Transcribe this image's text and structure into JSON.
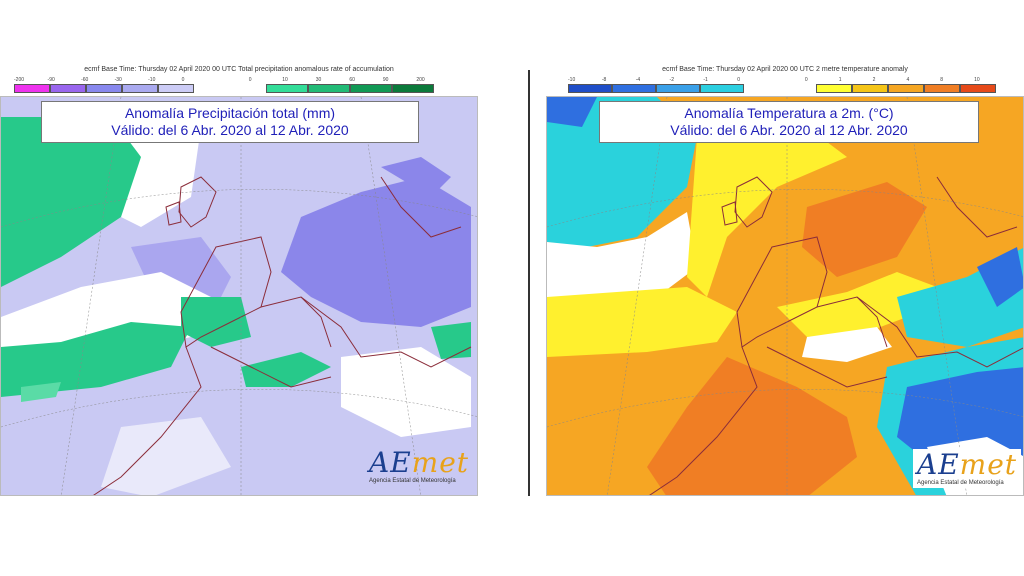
{
  "left_map": {
    "header": "ecmf Base Time: Thursday 02 April 2020 00 UTC Total precipitation anomalous rate of accumulation",
    "scale_ticks": [
      "-200",
      "-90",
      "-60",
      "-30",
      "-10",
      "0",
      "",
      "0",
      "10",
      "30",
      "60",
      "90",
      "200"
    ],
    "scale_colors_negative": [
      "#ee33ee",
      "#9966ee",
      "#8888ee",
      "#aaaaf0",
      "#ccccf6"
    ],
    "scale_colors_positive": [
      "#33dd99",
      "#22bb77",
      "#119955",
      "#0b7a3b"
    ],
    "title_line1": "Anomalía Precipitación total (mm)",
    "title_line2": "Válido: del 6 Abr. 2020 al 12 Abr. 2020",
    "logo_text_a": "AE",
    "logo_text_b": "met",
    "logo_sub": "Agencia Estatal de Meteorología",
    "colors": {
      "background": "#c9c9f3",
      "dry": "#8b86ea",
      "wet": "#27c98a",
      "white": "#ffffff",
      "border_lines": "#8b2d3a"
    }
  },
  "right_map": {
    "header": "ecmf Base Time: Thursday 02 April 2020 00 UTC 2 metre temperature anomaly",
    "scale_ticks": [
      "-10",
      "-8",
      "-4",
      "-2",
      "-1",
      "0",
      "",
      "0",
      "1",
      "2",
      "4",
      "8",
      "10"
    ],
    "scale_colors_negative": [
      "#1f4ec8",
      "#2f6fe0",
      "#3aa0e8",
      "#2ccfe0"
    ],
    "scale_colors_positive": [
      "#ffff33",
      "#f5c518",
      "#f5a623",
      "#f07e24",
      "#e64a19"
    ],
    "title_line1": "Anomalía Temperatura a 2m. (°C)",
    "title_line2": "Válido: del 6 Abr. 2020 al 12 Abr. 2020",
    "logo_text_a": "AE",
    "logo_text_b": "met",
    "logo_sub": "Agencia Estatal de Meteorología",
    "colors": {
      "warm": "#f6a623",
      "hot": "#f07e24",
      "mild": "#fff02e",
      "cold": "#2ad2dc",
      "very_cold": "#2f6fe0",
      "white": "#ffffff",
      "border_lines": "#8b2d3a"
    }
  }
}
